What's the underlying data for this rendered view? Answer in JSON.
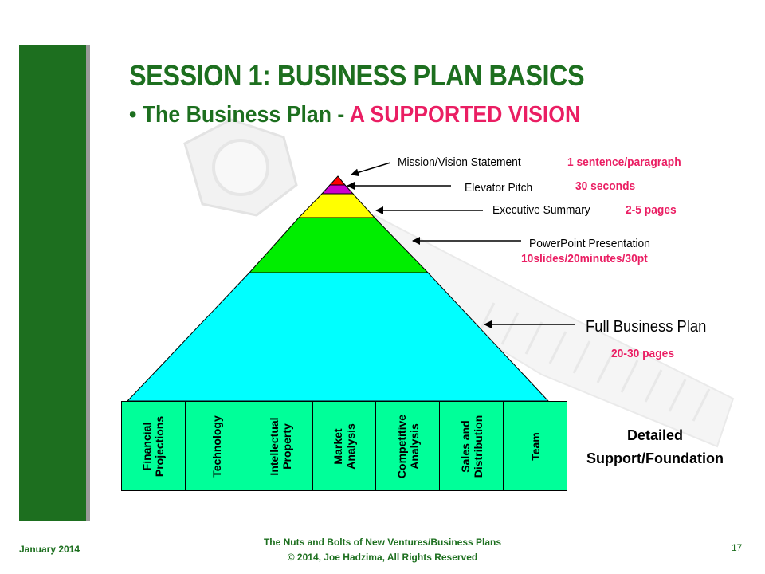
{
  "slide": {
    "title": "SESSION 1:  BUSINESS PLAN BASICS",
    "subtitle_bullet": "•",
    "subtitle_main": "The Business Plan - ",
    "subtitle_accent": "A SUPPORTED VISION"
  },
  "pyramid": {
    "levels": [
      {
        "label": "Mission/Vision Statement",
        "value": "1 sentence/paragraph",
        "color": "#ff0000"
      },
      {
        "label": "Elevator Pitch",
        "value": "30 seconds",
        "color": "#cc00cc"
      },
      {
        "label": "Executive Summary",
        "value": "2-5 pages",
        "color": "#ffff00"
      },
      {
        "label": "PowerPoint Presentation",
        "value": "10slides/20minutes/30pt",
        "color": "#00ee00"
      },
      {
        "label": "Full Business Plan",
        "value": "20-30 pages",
        "color": "#00ffff"
      }
    ]
  },
  "foundation": {
    "color": "#00ff99",
    "columns": [
      "Financial\nProjections",
      "Technology",
      "Intellectual\nProperty",
      "Market\nAnalysis",
      "Competitive\nAnalysis",
      "Sales and\nDistribution",
      "Team"
    ],
    "label": "Detailed\nSupport/Foundation"
  },
  "footer": {
    "date": "January 2014",
    "center": "The Nuts and Bolts of New Ventures/Business Plans\n© 2014, Joe Hadzima, All Rights Reserved",
    "page": "17"
  },
  "colors": {
    "green": "#1d6f1f",
    "accent": "#ea1e63"
  }
}
